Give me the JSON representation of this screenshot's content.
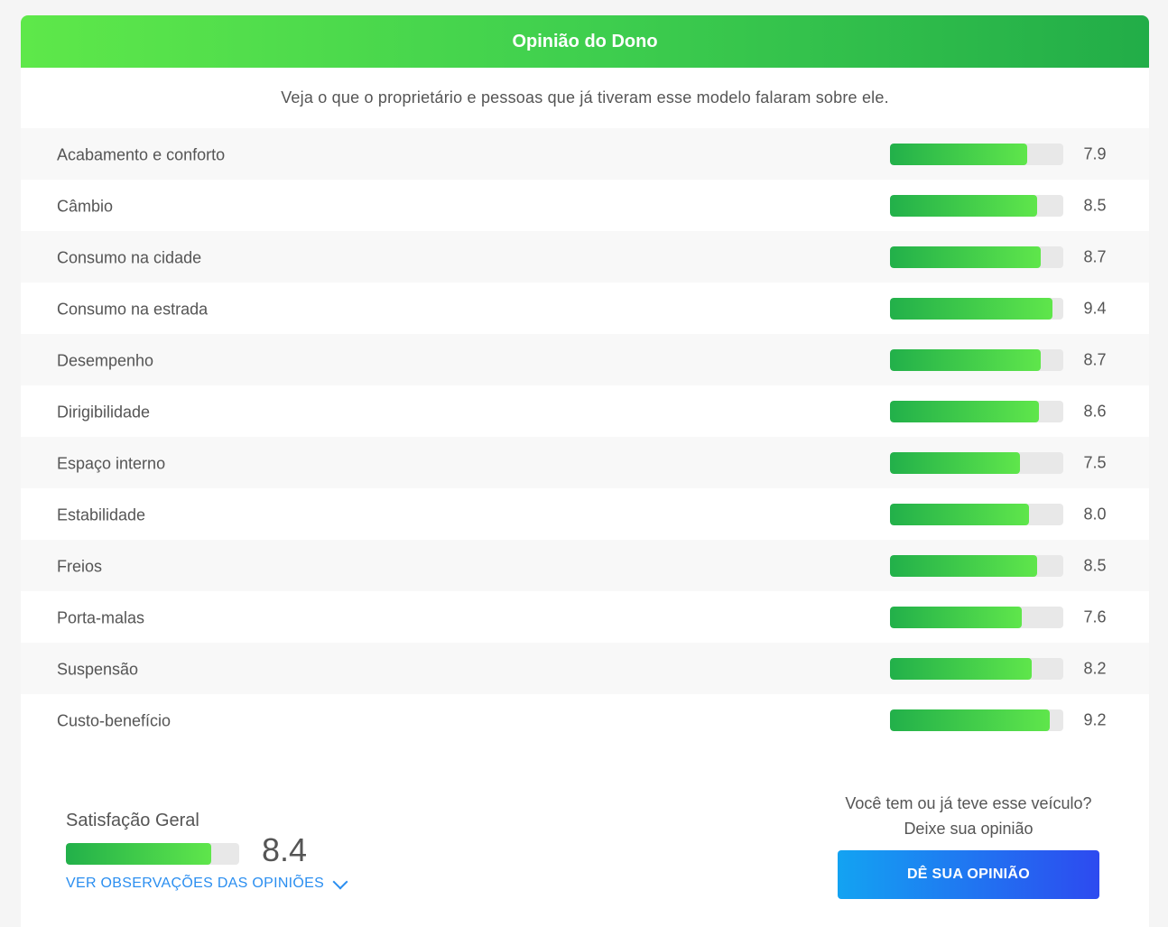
{
  "header": {
    "title": "Opinião do Dono"
  },
  "subtitle": "Veja o que o proprietário e pessoas que já tiveram esse modelo falaram sobre ele.",
  "ratings": [
    {
      "label": "Acabamento e conforto",
      "value": "7.9",
      "fill": 0.79
    },
    {
      "label": "Câmbio",
      "value": "8.5",
      "fill": 0.85
    },
    {
      "label": "Consumo na cidade",
      "value": "8.7",
      "fill": 0.87
    },
    {
      "label": "Consumo na estrada",
      "value": "9.4",
      "fill": 0.94
    },
    {
      "label": "Desempenho",
      "value": "8.7",
      "fill": 0.87
    },
    {
      "label": "Dirigibilidade",
      "value": "8.6",
      "fill": 0.86
    },
    {
      "label": "Espaço interno",
      "value": "7.5",
      "fill": 0.75
    },
    {
      "label": "Estabilidade",
      "value": "8.0",
      "fill": 0.8
    },
    {
      "label": "Freios",
      "value": "8.5",
      "fill": 0.85
    },
    {
      "label": "Porta-malas",
      "value": "7.6",
      "fill": 0.76
    },
    {
      "label": "Suspensão",
      "value": "8.2",
      "fill": 0.82
    },
    {
      "label": "Custo-benefício",
      "value": "9.2",
      "fill": 0.92
    }
  ],
  "overall": {
    "label": "Satisfação Geral",
    "value": "8.4",
    "fill": 0.84,
    "link_label": "VER OBSERVAÇÕES DAS OPINIÕES",
    "link_icon": "chevron-down-icon"
  },
  "cta": {
    "question_line1": "Você tem ou já teve esse veículo?",
    "question_line2": "Deixe sua opinião",
    "button_label": "DÊ SUA OPINIÃO"
  },
  "colors": {
    "header_gradient_start": "#5ee84a",
    "header_gradient_end": "#22ad48",
    "bar_gradient_start": "#22b04a",
    "bar_gradient_end": "#5fe64b",
    "link": "#2a8ef0",
    "button_gradient_start": "#13a3f2",
    "button_gradient_end": "#2d4af0"
  }
}
